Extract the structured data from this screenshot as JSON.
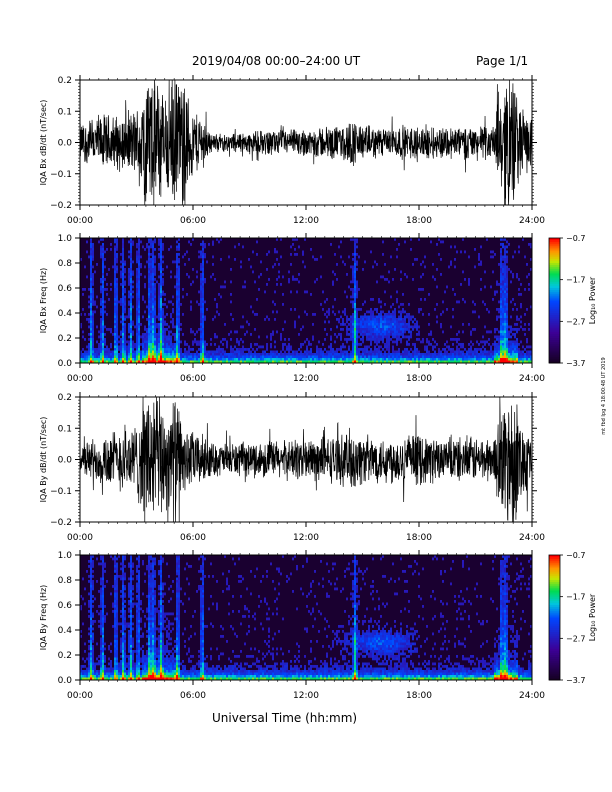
{
  "header": {
    "title": "2019/04/08   00:00–24:00 UT",
    "page": "Page 1/1"
  },
  "footer": {
    "xlabel": "Universal Time (hh:mm)",
    "stamp": "mt fbd Ipg 4 18:00:48 UT 2019"
  },
  "chart_data": [
    {
      "type": "line",
      "ylabel": "IQA Bx dB/dt (nT/sec)",
      "xlim": [
        0,
        24
      ],
      "ylim": [
        -0.2,
        0.2
      ],
      "yticks": [
        "0.2",
        "0.1",
        "0.0",
        "−0.1",
        "−0.2"
      ],
      "xticks": [
        "00:00",
        "06:00",
        "12:00",
        "18:00",
        "24:00"
      ],
      "envelope": {
        "x": [
          0,
          1,
          2,
          3,
          3.5,
          4,
          4.5,
          5,
          5.5,
          6,
          6.5,
          7,
          8,
          9,
          10,
          11,
          12,
          13,
          14,
          14.5,
          15,
          16,
          17,
          18,
          19,
          20,
          21,
          22,
          22.5,
          23,
          23.5,
          24
        ],
        "amp": [
          0.07,
          0.1,
          0.1,
          0.12,
          0.25,
          0.25,
          0.2,
          0.25,
          0.22,
          0.12,
          0.1,
          0.03,
          0.035,
          0.04,
          0.045,
          0.045,
          0.05,
          0.06,
          0.06,
          0.09,
          0.06,
          0.055,
          0.06,
          0.06,
          0.06,
          0.06,
          0.06,
          0.06,
          0.25,
          0.25,
          0.12,
          0.08
        ]
      }
    },
    {
      "type": "heatmap",
      "ylabel": "IQA Bx Freq (Hz)",
      "xlim": [
        0,
        24
      ],
      "ylim": [
        0,
        1.0
      ],
      "yticks": [
        "1.0",
        "0.8",
        "0.6",
        "0.4",
        "0.2",
        "0.0"
      ],
      "xticks": [
        "00:00",
        "06:00",
        "12:00",
        "18:00",
        "24:00"
      ],
      "colorbar": {
        "label": "Log₁₀ Power",
        "ticks": [
          "−0.7",
          "−1.7",
          "−2.7",
          "−3.7"
        ]
      }
    },
    {
      "type": "line",
      "ylabel": "IQA By dB/dt (nT/sec)",
      "xlim": [
        0,
        24
      ],
      "ylim": [
        -0.2,
        0.2
      ],
      "yticks": [
        "0.2",
        "0.1",
        "0.0",
        "−0.1",
        "−0.2"
      ],
      "xticks": [
        "00:00",
        "06:00",
        "12:00",
        "18:00",
        "24:00"
      ],
      "envelope": {
        "x": [
          0,
          1,
          2,
          3,
          3.5,
          4,
          4.5,
          5,
          5.5,
          6,
          6.5,
          7,
          8,
          9,
          10,
          11,
          12,
          13,
          14,
          14.5,
          15,
          16,
          17,
          18,
          19,
          20,
          21,
          22,
          22.5,
          23,
          23.5,
          24
        ],
        "amp": [
          0.05,
          0.09,
          0.11,
          0.13,
          0.25,
          0.25,
          0.2,
          0.25,
          0.12,
          0.1,
          0.09,
          0.06,
          0.06,
          0.06,
          0.07,
          0.07,
          0.08,
          0.08,
          0.09,
          0.12,
          0.09,
          0.08,
          0.09,
          0.09,
          0.08,
          0.08,
          0.08,
          0.08,
          0.25,
          0.25,
          0.13,
          0.09
        ]
      }
    },
    {
      "type": "heatmap",
      "ylabel": "IQA By Freq (Hz)",
      "xlim": [
        0,
        24
      ],
      "ylim": [
        0,
        1.0
      ],
      "yticks": [
        "1.0",
        "0.8",
        "0.6",
        "0.4",
        "0.2",
        "0.0"
      ],
      "xticks": [
        "00:00",
        "06:00",
        "12:00",
        "18:00",
        "24:00"
      ],
      "colorbar": {
        "label": "Log₁₀ Power",
        "ticks": [
          "−0.7",
          "−1.7",
          "−2.7",
          "−3.7"
        ]
      }
    }
  ]
}
